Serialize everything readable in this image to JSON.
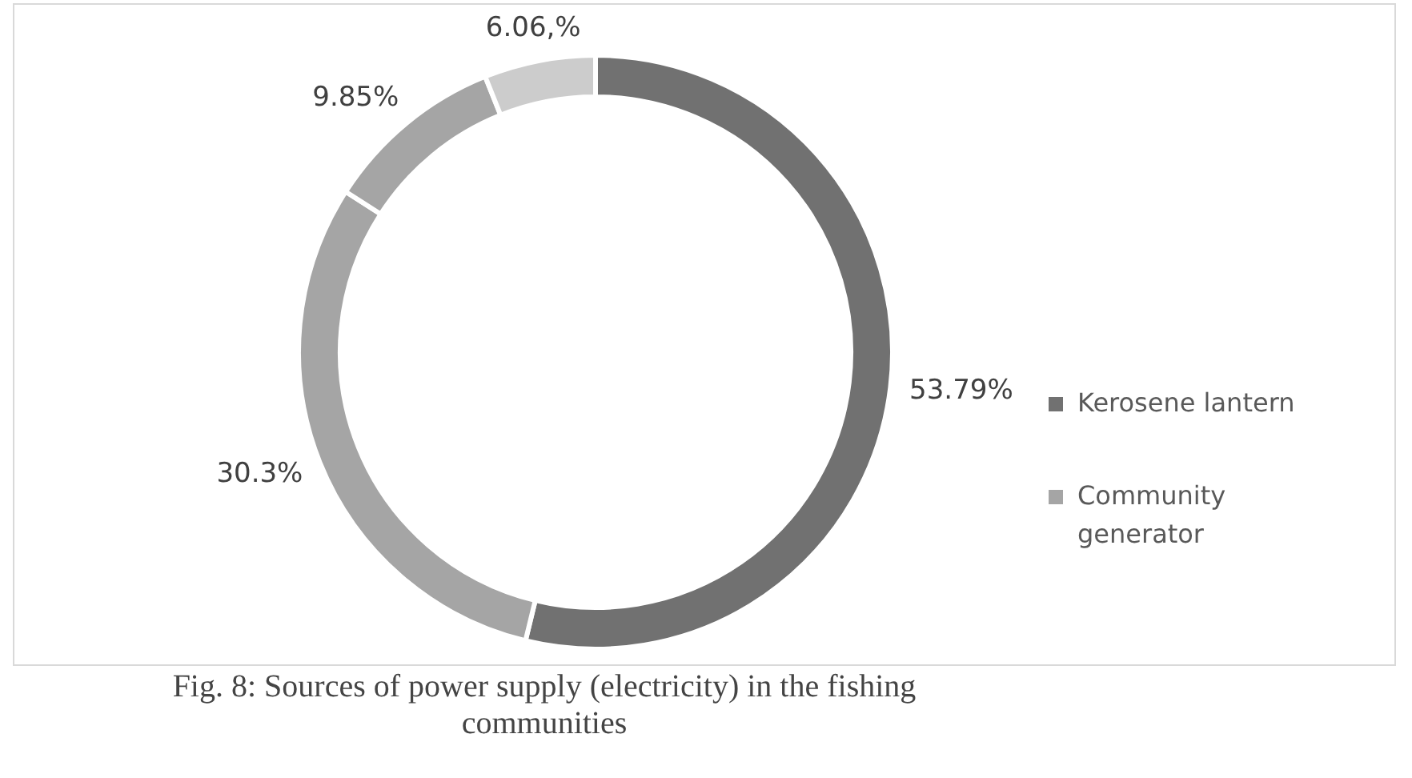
{
  "chart_data": {
    "type": "donut",
    "title": "Fig. 8: Sources of power supply (electricity) in the fishing communities",
    "categories": [
      "Kerosene lantern",
      "Community generator",
      null,
      null
    ],
    "values": [
      53.79,
      30.3,
      9.85,
      6.06
    ],
    "value_labels": [
      "53.79%",
      "30.3%",
      "9.85%",
      "6.06,%"
    ],
    "colors": [
      "#717171",
      "#a5a5a5",
      "#a5a5a5",
      "#cccccc"
    ],
    "legend": "right"
  }
}
